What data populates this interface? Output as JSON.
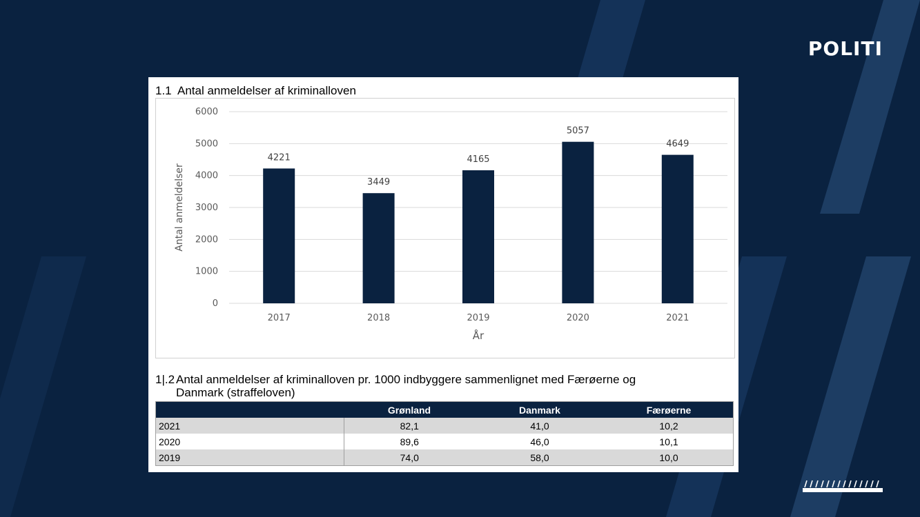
{
  "brand": "POLITI",
  "colors": {
    "background": "#0a2240",
    "bar": "#0a2240",
    "table_header": "#0a2240"
  },
  "section1": {
    "number": "1.1",
    "title": "Antal anmeldelser af kriminalloven"
  },
  "section2": {
    "number": "1|.2",
    "title_line1": "Antal anmeldelser af kriminalloven pr. 1000 indbyggere sammenlignet med Færøerne og",
    "title_line2": "Danmark (straffeloven)"
  },
  "chart_data": {
    "type": "bar",
    "categories": [
      "2017",
      "2018",
      "2019",
      "2020",
      "2021"
    ],
    "values": [
      4221,
      3449,
      4165,
      5057,
      4649
    ],
    "data_labels": [
      "4221",
      "3449",
      "4165",
      "5057",
      "4649"
    ],
    "xlabel": "År",
    "ylabel": "Antal anmeldelser",
    "ylim": [
      0,
      6000
    ],
    "yticks": [
      "0",
      "1000",
      "2000",
      "3000",
      "4000",
      "5000",
      "6000"
    ],
    "grid": true,
    "legend": "none"
  },
  "table": {
    "headers": [
      "",
      "Grønland",
      "Danmark",
      "Færøerne"
    ],
    "rows": [
      [
        "2021",
        "82,1",
        "41,0",
        "10,2"
      ],
      [
        "2020",
        "89,6",
        "46,0",
        "10,1"
      ],
      [
        "2019",
        "74,0",
        "58,0",
        "10,0"
      ]
    ]
  }
}
